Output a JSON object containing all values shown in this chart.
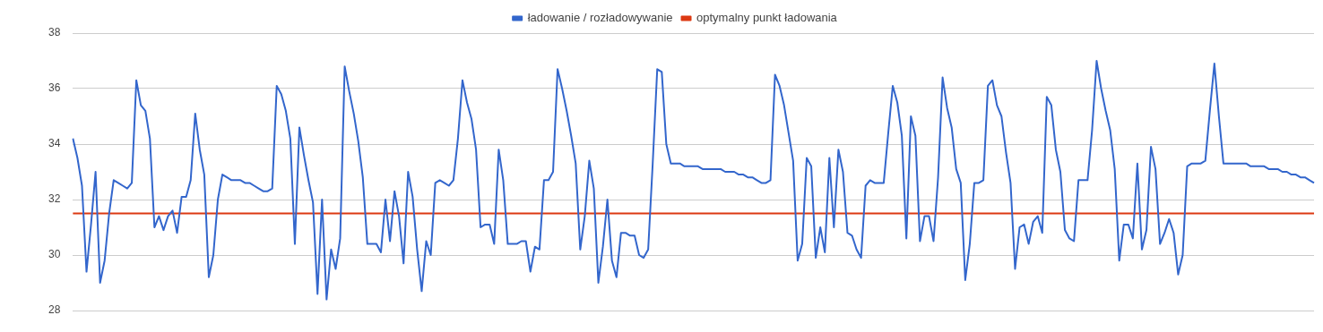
{
  "chart_data": {
    "type": "line",
    "ylim": [
      28,
      38
    ],
    "yticks": [
      28,
      30,
      32,
      34,
      36,
      38
    ],
    "grid": "y",
    "legend": "top",
    "tick_labels": "y",
    "marker": "none",
    "line_style": "solid",
    "categories": [
      null,
      null,
      null,
      null,
      null,
      null,
      null,
      null,
      null,
      null,
      null,
      null,
      null,
      null,
      null,
      null,
      null,
      null,
      null,
      null,
      null,
      null,
      null,
      null,
      null,
      null,
      null,
      null,
      null,
      null,
      null,
      null,
      null,
      null,
      null,
      null,
      null,
      null,
      null,
      null,
      null,
      null,
      null,
      null,
      null,
      null,
      null,
      null,
      null,
      null,
      null,
      null,
      null,
      null,
      null,
      null,
      null,
      null,
      null,
      null,
      null,
      null,
      null,
      null,
      null,
      null,
      null,
      null,
      null,
      null,
      null,
      null,
      null,
      null,
      null,
      null,
      null,
      null,
      null,
      null,
      null,
      null,
      null,
      null,
      null,
      null,
      null,
      null,
      null,
      null,
      null,
      null,
      null,
      null,
      null,
      null,
      null,
      null,
      null,
      null,
      null,
      null,
      null,
      null,
      null,
      null,
      null,
      null,
      null,
      null,
      null,
      null,
      null,
      null,
      null,
      null,
      null,
      null,
      null,
      null,
      null,
      null,
      null,
      null,
      null,
      null,
      null,
      null,
      null,
      null,
      null,
      null,
      null,
      null,
      null,
      null,
      null,
      null,
      null,
      null,
      null,
      null,
      null,
      null,
      null,
      null,
      null,
      null,
      null,
      null,
      null,
      null,
      null,
      null,
      null,
      null,
      null,
      null,
      null,
      null,
      null,
      null,
      null,
      null,
      null,
      null,
      null,
      null,
      null,
      null,
      null,
      null,
      null,
      null,
      null,
      null,
      null,
      null,
      null,
      null,
      null,
      null,
      null,
      null,
      null,
      null,
      null,
      null,
      null,
      null,
      null,
      null,
      null,
      null,
      null,
      null,
      null,
      null,
      null,
      null,
      null,
      null,
      null,
      null,
      null,
      null,
      null,
      null,
      null,
      null,
      null,
      null,
      null,
      null,
      null,
      null,
      null,
      null,
      null,
      null,
      null,
      null,
      null,
      null,
      null,
      null,
      null,
      null,
      null,
      null,
      null,
      null,
      null,
      null,
      null,
      null,
      null,
      null,
      null,
      null,
      null,
      null,
      null,
      null,
      null,
      null,
      null,
      null,
      null,
      null,
      null,
      null,
      null,
      null,
      null,
      null,
      null,
      null,
      null,
      null,
      null,
      null,
      null,
      null,
      null,
      null,
      null,
      null,
      null,
      null,
      null,
      null,
      null,
      null,
      null
    ],
    "series": [
      {
        "name": "ładowanie / rozładowywanie",
        "color": "#3366cc",
        "values": [
          34.2,
          33.5,
          32.5,
          29.4,
          31.1,
          33.0,
          29.0,
          29.8,
          31.5,
          32.7,
          32.6,
          32.5,
          32.4,
          32.6,
          36.3,
          35.4,
          35.2,
          34.2,
          31.0,
          31.4,
          30.9,
          31.4,
          31.6,
          30.8,
          32.1,
          32.1,
          32.7,
          35.1,
          33.8,
          32.9,
          29.2,
          30.0,
          32.0,
          32.9,
          32.8,
          32.7,
          32.7,
          32.7,
          32.6,
          32.6,
          32.5,
          32.4,
          32.3,
          32.3,
          32.4,
          36.1,
          35.8,
          35.2,
          34.2,
          30.4,
          34.6,
          33.6,
          32.7,
          31.9,
          28.6,
          32.0,
          28.4,
          30.2,
          29.5,
          30.6,
          36.8,
          35.9,
          35.1,
          34.1,
          32.8,
          30.4,
          30.4,
          30.4,
          30.1,
          32.0,
          30.5,
          32.3,
          31.4,
          29.7,
          33.0,
          32.1,
          30.2,
          28.7,
          30.5,
          30.0,
          32.6,
          32.7,
          32.6,
          32.5,
          32.7,
          34.2,
          36.3,
          35.5,
          34.9,
          33.8,
          31.0,
          31.1,
          31.1,
          30.4,
          33.8,
          32.7,
          30.4,
          30.4,
          30.4,
          30.5,
          30.5,
          29.4,
          30.3,
          30.2,
          32.7,
          32.7,
          33.0,
          36.7,
          36.0,
          35.2,
          34.3,
          33.3,
          30.2,
          31.4,
          33.4,
          32.4,
          29.0,
          30.3,
          32.0,
          29.8,
          29.2,
          30.8,
          30.8,
          30.7,
          30.7,
          30.0,
          29.9,
          30.2,
          33.3,
          36.7,
          36.6,
          34.0,
          33.3,
          33.3,
          33.3,
          33.2,
          33.2,
          33.2,
          33.2,
          33.1,
          33.1,
          33.1,
          33.1,
          33.1,
          33.0,
          33.0,
          33.0,
          32.9,
          32.9,
          32.8,
          32.8,
          32.7,
          32.6,
          32.6,
          32.7,
          36.5,
          36.1,
          35.4,
          34.4,
          33.4,
          29.8,
          30.4,
          33.5,
          33.2,
          29.9,
          31.0,
          30.1,
          33.5,
          31.0,
          33.8,
          33.0,
          30.8,
          30.7,
          30.2,
          29.9,
          32.5,
          32.7,
          32.6,
          32.6,
          32.6,
          34.4,
          36.1,
          35.5,
          34.3,
          30.6,
          35.0,
          34.3,
          30.5,
          31.4,
          31.4,
          30.5,
          32.8,
          36.4,
          35.3,
          34.6,
          33.1,
          32.6,
          29.1,
          30.4,
          32.6,
          32.6,
          32.7,
          36.1,
          36.3,
          35.4,
          35.0,
          33.7,
          32.6,
          29.5,
          31.0,
          31.1,
          30.4,
          31.2,
          31.4,
          30.8,
          35.7,
          35.4,
          33.8,
          33.0,
          30.9,
          30.6,
          30.5,
          32.7,
          32.7,
          32.7,
          34.5,
          37.0,
          36.0,
          35.2,
          34.5,
          33.1,
          29.8,
          31.1,
          31.1,
          30.6,
          33.3,
          30.2,
          30.9,
          33.9,
          33.1,
          30.4,
          30.8,
          31.3,
          30.8,
          29.3,
          30.0,
          33.2,
          33.3,
          33.3,
          33.3,
          33.4,
          35.2,
          36.9,
          35.0,
          33.3,
          33.3,
          33.3,
          33.3,
          33.3,
          33.3,
          33.2,
          33.2,
          33.2,
          33.2,
          33.1,
          33.1,
          33.1,
          33.0,
          33.0,
          32.9,
          32.9,
          32.8,
          32.8,
          32.7,
          32.6
        ]
      },
      {
        "name": "optymalny punkt ładowania",
        "color": "#dc3912",
        "values": [
          31.5,
          31.5,
          31.5,
          31.5,
          31.5,
          31.5,
          31.5,
          31.5,
          31.5,
          31.5,
          31.5,
          31.5,
          31.5,
          31.5,
          31.5,
          31.5,
          31.5,
          31.5,
          31.5,
          31.5,
          31.5,
          31.5,
          31.5,
          31.5,
          31.5,
          31.5,
          31.5,
          31.5,
          31.5,
          31.5,
          31.5,
          31.5,
          31.5,
          31.5,
          31.5,
          31.5,
          31.5,
          31.5,
          31.5,
          31.5,
          31.5,
          31.5,
          31.5,
          31.5,
          31.5,
          31.5,
          31.5,
          31.5,
          31.5,
          31.5,
          31.5,
          31.5,
          31.5,
          31.5,
          31.5,
          31.5,
          31.5,
          31.5,
          31.5,
          31.5,
          31.5,
          31.5,
          31.5,
          31.5,
          31.5,
          31.5,
          31.5,
          31.5,
          31.5,
          31.5,
          31.5,
          31.5,
          31.5,
          31.5,
          31.5,
          31.5,
          31.5,
          31.5,
          31.5,
          31.5,
          31.5,
          31.5,
          31.5,
          31.5,
          31.5,
          31.5,
          31.5,
          31.5,
          31.5,
          31.5,
          31.5,
          31.5,
          31.5,
          31.5,
          31.5,
          31.5,
          31.5,
          31.5,
          31.5,
          31.5,
          31.5,
          31.5,
          31.5,
          31.5,
          31.5,
          31.5,
          31.5,
          31.5,
          31.5,
          31.5,
          31.5,
          31.5,
          31.5,
          31.5,
          31.5,
          31.5,
          31.5,
          31.5,
          31.5,
          31.5,
          31.5,
          31.5,
          31.5,
          31.5,
          31.5,
          31.5,
          31.5,
          31.5,
          31.5,
          31.5,
          31.5,
          31.5,
          31.5,
          31.5,
          31.5,
          31.5,
          31.5,
          31.5,
          31.5,
          31.5,
          31.5,
          31.5,
          31.5,
          31.5,
          31.5,
          31.5,
          31.5,
          31.5,
          31.5,
          31.5,
          31.5,
          31.5,
          31.5,
          31.5,
          31.5,
          31.5,
          31.5,
          31.5,
          31.5,
          31.5,
          31.5,
          31.5,
          31.5,
          31.5,
          31.5,
          31.5,
          31.5,
          31.5,
          31.5,
          31.5,
          31.5,
          31.5,
          31.5,
          31.5,
          31.5,
          31.5,
          31.5,
          31.5,
          31.5,
          31.5,
          31.5,
          31.5,
          31.5,
          31.5,
          31.5,
          31.5,
          31.5,
          31.5,
          31.5,
          31.5,
          31.5,
          31.5,
          31.5,
          31.5,
          31.5,
          31.5,
          31.5,
          31.5,
          31.5,
          31.5,
          31.5,
          31.5,
          31.5,
          31.5,
          31.5,
          31.5,
          31.5,
          31.5,
          31.5,
          31.5,
          31.5,
          31.5,
          31.5,
          31.5,
          31.5,
          31.5,
          31.5,
          31.5,
          31.5,
          31.5,
          31.5,
          31.5,
          31.5,
          31.5,
          31.5,
          31.5,
          31.5,
          31.5,
          31.5,
          31.5,
          31.5,
          31.5,
          31.5,
          31.5,
          31.5,
          31.5,
          31.5,
          31.5,
          31.5,
          31.5,
          31.5,
          31.5,
          31.5,
          31.5,
          31.5,
          31.5,
          31.5,
          31.5,
          31.5,
          31.5,
          31.5,
          31.5,
          31.5,
          31.5,
          31.5,
          31.5,
          31.5,
          31.5,
          31.5,
          31.5,
          31.5,
          31.5,
          31.5,
          31.5,
          31.5,
          31.5,
          31.5,
          31.5,
          31.5,
          31.5,
          31.5,
          31.5,
          31.5,
          31.5,
          31.5
        ]
      }
    ]
  }
}
